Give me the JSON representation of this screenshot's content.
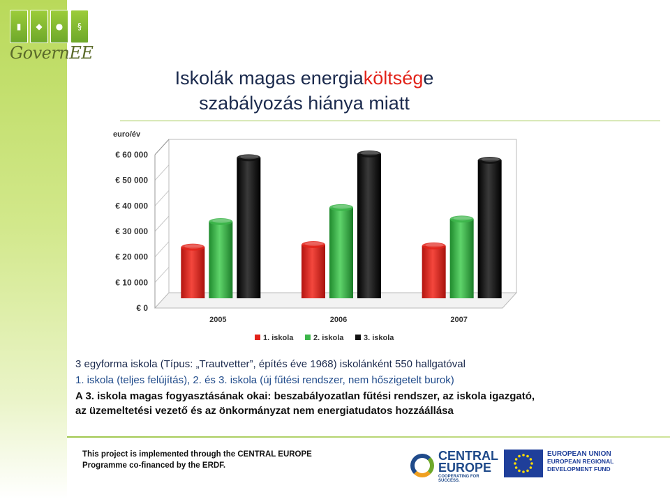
{
  "branding": {
    "logo_text": "GovernEE",
    "tile_glyphs": [
      "▮",
      "◆",
      "●",
      "§"
    ]
  },
  "title": {
    "part1": "Iskolák magas energia",
    "part2_accent": "költség",
    "part3": "e",
    "line2": "szabályozás hiánya miatt"
  },
  "chart_data": {
    "type": "bar",
    "title": "",
    "ylabel": "euro/év",
    "xlabel": "",
    "categories": [
      "2005",
      "2006",
      "2007"
    ],
    "series": [
      {
        "name": "1. iskola",
        "color": "#e2231a",
        "values": [
          20000,
          21000,
          20500
        ]
      },
      {
        "name": "2. iskola",
        "color": "#3cb54a",
        "values": [
          30000,
          35500,
          31000
        ]
      },
      {
        "name": "3. iskola",
        "color": "#111111",
        "values": [
          55000,
          56500,
          54000
        ]
      }
    ],
    "ylim": [
      0,
      60000
    ],
    "yticks": [
      0,
      10000,
      20000,
      30000,
      40000,
      50000,
      60000
    ],
    "ytick_labels": [
      "€ 0",
      "€ 10 000",
      "€ 20 000",
      "€ 30 000",
      "€ 40 000",
      "€ 50 000",
      "€ 60 000"
    ],
    "grid": true,
    "legend": "bottom",
    "style": "3d"
  },
  "body": {
    "line1": "3 egyforma iskola (Típus: „Trautvetter”, építés éve 1968) iskolánként 550 hallgatóval",
    "line2": "1. iskola (teljes felújítás), 2. és 3. iskola (új fűtési rendszer, nem hőszigetelt burok)",
    "line3": "A 3. iskola magas fogyasztásának okai: beszabályozatlan fűtési rendszer, az iskola igazgató,",
    "line4": "az üzemeltetési vezető és az önkormányzat nem energiatudatos hozzáállása"
  },
  "footer": {
    "line1": "This project is implemented through the CENTRAL EUROPE",
    "line2": "Programme co-financed by the ERDF.",
    "ce_name_1": "CENTRAL",
    "ce_name_2": "EUROPE",
    "ce_slogan": "COOPERATING FOR SUCCESS.",
    "eu_line1": "EUROPEAN UNION",
    "eu_line2": "EUROPEAN REGIONAL",
    "eu_line3": "DEVELOPMENT FUND"
  }
}
